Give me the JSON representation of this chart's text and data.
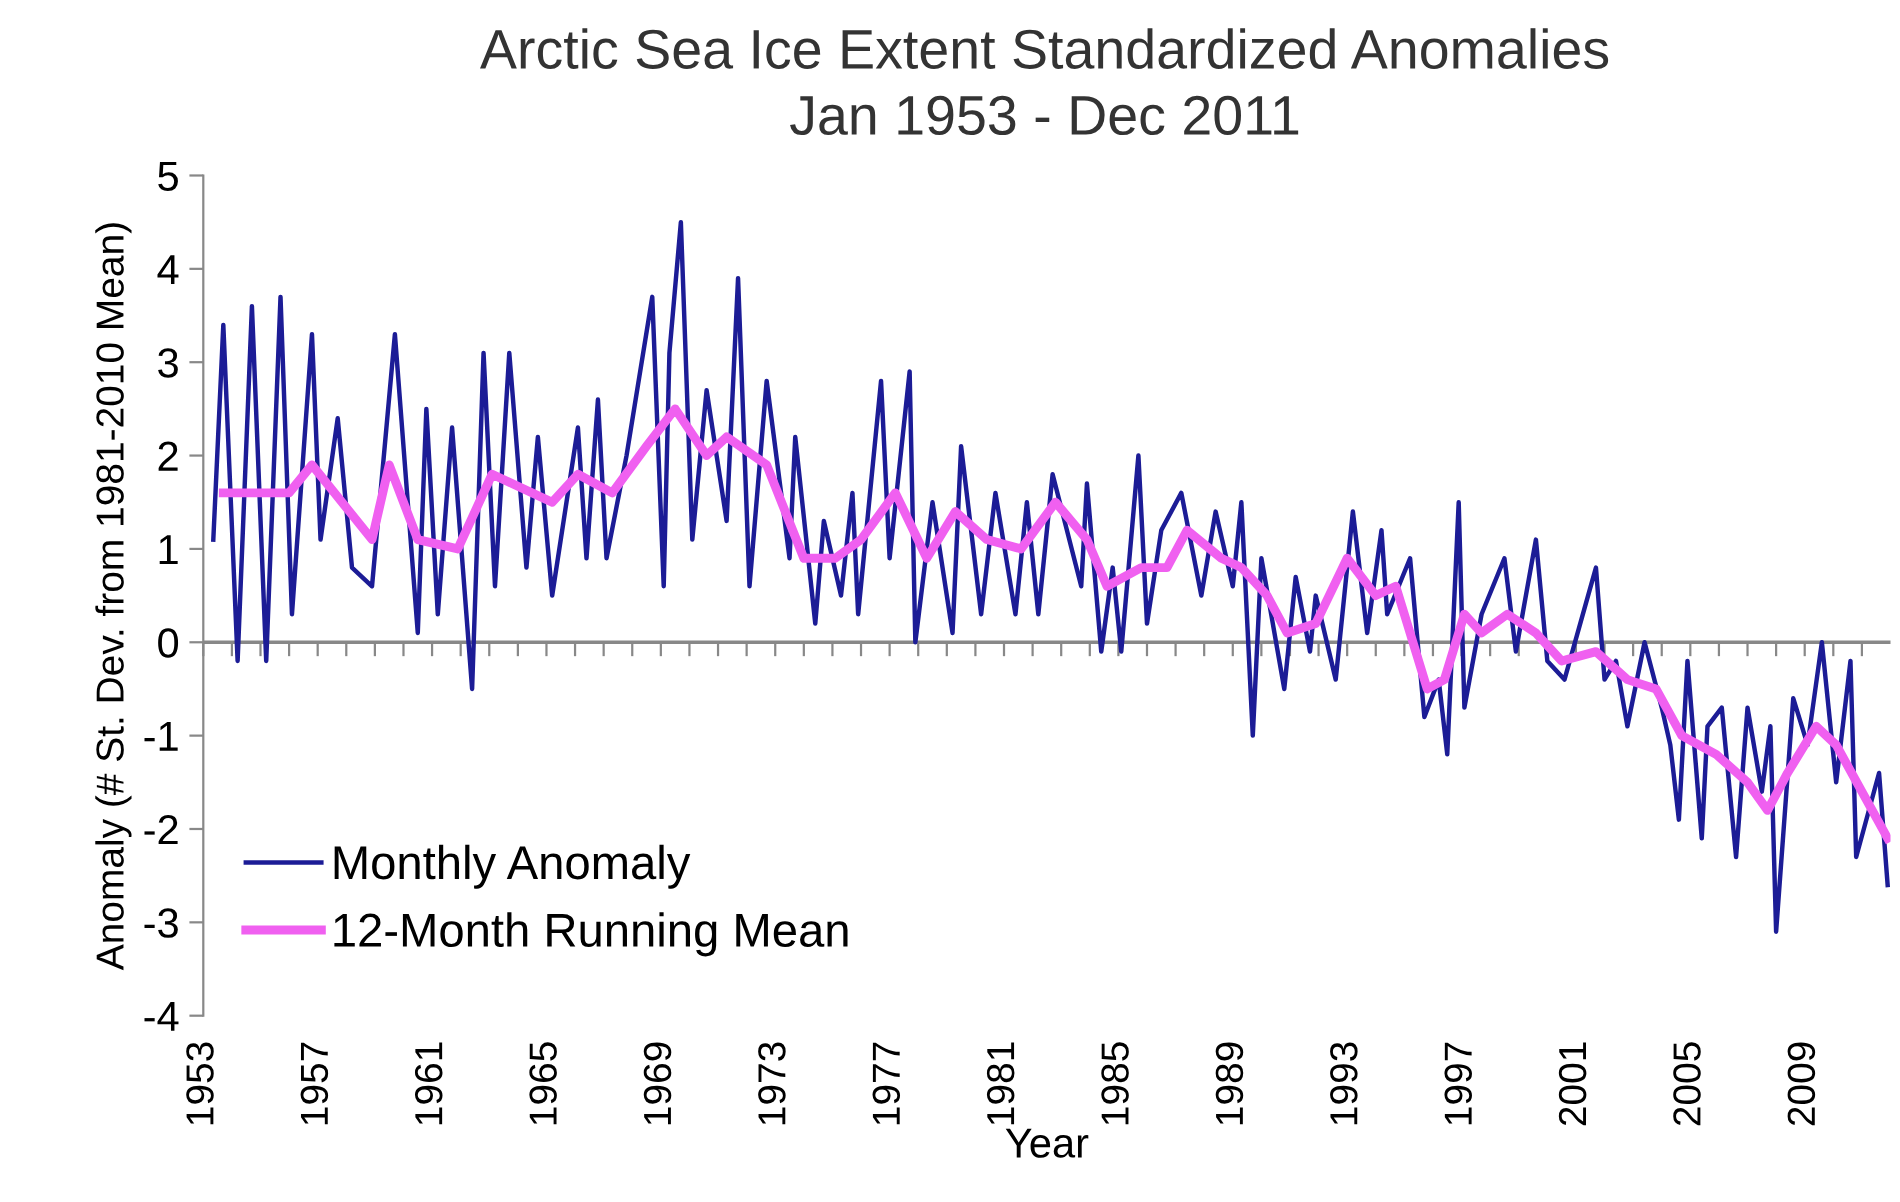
{
  "chart_data": {
    "type": "line",
    "title": "Arctic Sea Ice Extent Standardized Anomalies",
    "subtitle": "Jan 1953 - Dec 2011",
    "xlabel": "Year",
    "ylabel": "Anomaly (# St. Dev. from 1981-2010 Mean)",
    "xlim": [
      1953,
      2012
    ],
    "ylim": [
      -4,
      5
    ],
    "yticks": [
      -4,
      -3,
      -2,
      -1,
      0,
      1,
      2,
      3,
      4,
      5
    ],
    "xticks": [
      1953,
      {
        "value": 1954,
        "label": null
      },
      {
        "value": 1955,
        "label": null
      },
      {
        "value": 1956,
        "label": null
      },
      1957,
      {
        "value": 1958,
        "label": null
      },
      {
        "value": 1959,
        "label": null
      },
      {
        "value": 1960,
        "label": null
      },
      1961,
      {
        "value": 1962,
        "label": null
      },
      {
        "value": 1963,
        "label": null
      },
      {
        "value": 1964,
        "label": null
      },
      1965,
      {
        "value": 1966,
        "label": null
      },
      {
        "value": 1967,
        "label": null
      },
      {
        "value": 1968,
        "label": null
      },
      1969,
      {
        "value": 1970,
        "label": null
      },
      {
        "value": 1971,
        "label": null
      },
      {
        "value": 1972,
        "label": null
      },
      1973,
      {
        "value": 1974,
        "label": null
      },
      {
        "value": 1975,
        "label": null
      },
      {
        "value": 1976,
        "label": null
      },
      1977,
      {
        "value": 1978,
        "label": null
      },
      {
        "value": 1979,
        "label": null
      },
      {
        "value": 1980,
        "label": null
      },
      1981,
      {
        "value": 1982,
        "label": null
      },
      {
        "value": 1983,
        "label": null
      },
      {
        "value": 1984,
        "label": null
      },
      1985,
      {
        "value": 1986,
        "label": null
      },
      {
        "value": 1987,
        "label": null
      },
      {
        "value": 1988,
        "label": null
      },
      1989,
      {
        "value": 1990,
        "label": null
      },
      {
        "value": 1991,
        "label": null
      },
      {
        "value": 1992,
        "label": null
      },
      1993,
      {
        "value": 1994,
        "label": null
      },
      {
        "value": 1995,
        "label": null
      },
      {
        "value": 1996,
        "label": null
      },
      1997,
      {
        "value": 1998,
        "label": null
      },
      {
        "value": 1999,
        "label": null
      },
      {
        "value": 2000,
        "label": null
      },
      2001,
      {
        "value": 2002,
        "label": null
      },
      {
        "value": 2003,
        "label": null
      },
      {
        "value": 2004,
        "label": null
      },
      2005,
      {
        "value": 2006,
        "label": null
      },
      {
        "value": 2007,
        "label": null
      },
      {
        "value": 2008,
        "label": null
      },
      2009,
      {
        "value": 2010,
        "label": null
      },
      {
        "value": 2011,
        "label": null
      }
    ],
    "ref_lines": [
      {
        "axis": "y",
        "value": 0,
        "color": "#888888",
        "line_style": "solid"
      }
    ],
    "grid": false,
    "legend": "bottom left",
    "marker": "none",
    "line_style": "solid",
    "series": [
      {
        "name": "Monthly Anomaly",
        "color": "#1c1c96",
        "x": [
          1953.35,
          1953.7,
          1954.2,
          1954.7,
          1955.2,
          1955.7,
          1956.1,
          1956.8,
          1957.1,
          1957.7,
          1958.2,
          1958.9,
          1959.7,
          1960.5,
          1960.8,
          1961.2,
          1961.7,
          1962.4,
          1962.8,
          1963.2,
          1963.7,
          1964.3,
          1964.7,
          1965.2,
          1966.1,
          1966.4,
          1966.8,
          1967.1,
          1967.8,
          1968.7,
          1969.1,
          1969.3,
          1969.7,
          1970.1,
          1970.6,
          1971.3,
          1971.7,
          1972.1,
          1972.7,
          1973.5,
          1973.7,
          1974.4,
          1974.7,
          1975.3,
          1975.7,
          1975.9,
          1976.7,
          1977.0,
          1977.7,
          1977.9,
          1978.5,
          1979.2,
          1979.5,
          1980.2,
          1980.7,
          1981.4,
          1981.8,
          1982.2,
          1982.7,
          1983.7,
          1983.9,
          1984.4,
          1984.8,
          1985.1,
          1985.7,
          1986.0,
          1986.5,
          1987.2,
          1987.9,
          1988.4,
          1989.0,
          1989.3,
          1989.7,
          1990.0,
          1990.8,
          1991.2,
          1991.7,
          1991.9,
          1992.6,
          1993.2,
          1993.7,
          1994.2,
          1994.4,
          1995.2,
          1995.7,
          1996.2,
          1996.5,
          1996.9,
          1997.1,
          1997.7,
          1998.5,
          1998.9,
          1999.6,
          2000.0,
          2000.6,
          2001.7,
          2002.0,
          2002.4,
          2002.8,
          2003.4,
          2004.0,
          2004.3,
          2004.6,
          2004.9,
          2005.4,
          2005.6,
          2006.1,
          2006.6,
          2007.0,
          2007.5,
          2007.8,
          2008.0,
          2008.6,
          2009.1,
          2009.6,
          2010.1,
          2010.6,
          2010.8,
          2011.6,
          2011.9
        ],
        "values": [
          1.1,
          3.4,
          -0.2,
          3.6,
          -0.2,
          3.7,
          0.3,
          3.3,
          1.1,
          2.4,
          0.8,
          0.6,
          3.3,
          0.1,
          2.5,
          0.3,
          2.3,
          -0.5,
          3.1,
          0.6,
          3.1,
          0.8,
          2.2,
          0.5,
          2.3,
          0.9,
          2.6,
          0.9,
          2.0,
          3.7,
          0.6,
          3.1,
          4.5,
          1.1,
          2.7,
          1.3,
          3.9,
          0.6,
          2.8,
          0.9,
          2.2,
          0.2,
          1.3,
          0.5,
          1.6,
          0.3,
          2.8,
          0.9,
          2.9,
          0.0,
          1.5,
          0.1,
          2.1,
          0.3,
          1.6,
          0.3,
          1.5,
          0.3,
          1.8,
          0.6,
          1.7,
          -0.1,
          0.8,
          -0.1,
          2.0,
          0.2,
          1.2,
          1.6,
          0.5,
          1.4,
          0.6,
          1.5,
          -1.0,
          0.9,
          -0.5,
          0.7,
          -0.1,
          0.5,
          -0.4,
          1.4,
          0.1,
          1.2,
          0.3,
          0.9,
          -0.8,
          -0.4,
          -1.2,
          1.5,
          -0.7,
          0.3,
          0.9,
          -0.1,
          1.1,
          -0.2,
          -0.4,
          0.8,
          -0.4,
          -0.2,
          -0.9,
          0.0,
          -0.7,
          -1.1,
          -1.9,
          -0.2,
          -2.1,
          -0.9,
          -0.7,
          -2.3,
          -0.7,
          -1.6,
          -0.9,
          -3.1,
          -0.6,
          -1.1,
          0.0,
          -1.5,
          -0.2,
          -2.3,
          -1.4,
          -2.6
        ]
      },
      {
        "name": "12-Month Running Mean",
        "color": "#f060f0",
        "x": [
          1953.7,
          1956.0,
          1956.8,
          1958.9,
          1959.5,
          1960.5,
          1961.9,
          1963.1,
          1965.2,
          1966.1,
          1967.3,
          1968.5,
          1969.5,
          1970.6,
          1971.3,
          1972.7,
          1974.0,
          1975.1,
          1976.0,
          1977.2,
          1978.3,
          1979.3,
          1980.4,
          1981.6,
          1982.8,
          1983.9,
          1984.6,
          1985.8,
          1986.7,
          1987.4,
          1988.6,
          1989.3,
          1990.2,
          1990.9,
          1991.9,
          1993.0,
          1994.0,
          1994.7,
          1995.8,
          1996.4,
          1997.1,
          1997.7,
          1998.6,
          1999.6,
          2000.5,
          2001.7,
          2002.8,
          2003.8,
          2004.7,
          2005.9,
          2007.0,
          2007.7,
          2008.4,
          2009.4,
          2010.1,
          2011.0,
          2011.9
        ],
        "values": [
          1.6,
          1.6,
          1.9,
          1.1,
          1.9,
          1.1,
          1.0,
          1.8,
          1.5,
          1.8,
          1.6,
          2.1,
          2.5,
          2.0,
          2.2,
          1.9,
          0.9,
          0.9,
          1.1,
          1.6,
          0.9,
          1.4,
          1.1,
          1.0,
          1.5,
          1.1,
          0.6,
          0.8,
          0.8,
          1.2,
          0.9,
          0.8,
          0.5,
          0.1,
          0.2,
          0.9,
          0.5,
          0.6,
          -0.5,
          -0.4,
          0.3,
          0.1,
          0.3,
          0.1,
          -0.2,
          -0.1,
          -0.4,
          -0.5,
          -1.0,
          -1.2,
          -1.5,
          -1.8,
          -1.4,
          -0.9,
          -1.1,
          -1.6,
          -2.1
        ]
      }
    ]
  }
}
